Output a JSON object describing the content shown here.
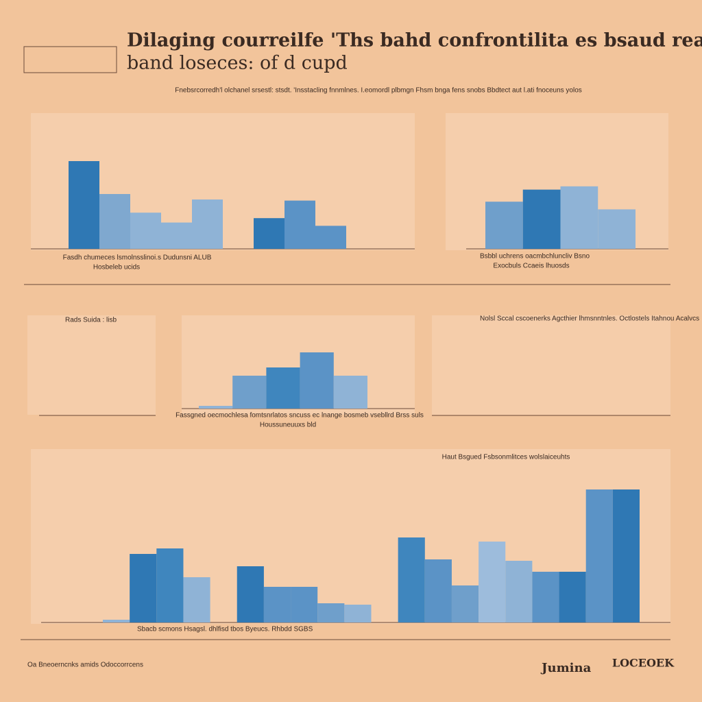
{
  "title": "Dilaging courreilfe 'Ths bahd confrontilita es bsaud reanies",
  "title_line2": "band loseces: of d cupd",
  "subtitle": "Fnebsrcorredh'l olchanel srsestl: stsdt. 'Insstacling fnnmlnes. I.eomordl plbmgn Fhsm bnga fens snobs Bbdtect aut l.ati fnoceuns yolos",
  "notes": [
    "Rads Suida : lisb",
    "Nolsl Sccal cscoenerks Agcthier lhmsnntnles. Octlostels Itahnou Acalvcs",
    "Jumina",
    "LOCEOEK",
    "Oa Bneoerncnks amids Odoccorrcens"
  ],
  "chart_data": [
    {
      "type": "bar",
      "caption": "Fasdh chumeces lsmolnsslinoi.s Dudunsni ALUB",
      "caption2": "Hosbeleb ucids",
      "categories": [
        null,
        null,
        null,
        null,
        null,
        null,
        null,
        null,
        null
      ],
      "values": [
        80,
        50,
        33,
        24,
        45,
        null,
        28,
        44,
        21
      ],
      "colors": [
        "#2f78b4",
        "#7fa8cf",
        "#8fb3d6",
        "#8fb3d6",
        "#8fb3d6",
        null,
        "#2f78b4",
        "#5b93c6",
        "#5b93c6"
      ],
      "ylim": [
        0,
        100
      ]
    },
    {
      "type": "bar",
      "caption": "Bsbbl uchrens oacmbchluncliv Bsno",
      "caption2": "Exocbuls Ccaeis lhuosds",
      "categories": [
        null,
        null,
        null,
        null
      ],
      "values": [
        43,
        54,
        57,
        36
      ],
      "colors": [
        "#6f9fcb",
        "#2f78b4",
        "#8fb3d6",
        "#8fb3d6"
      ],
      "ylim": [
        0,
        100
      ]
    },
    {
      "type": "bar",
      "caption": "Fassgned oecmochlesa fomtsnrlatos sncuss ec lnange bosmeb vsebllrd Brss suls",
      "caption2": "Houssuneuuxs bld",
      "categories": [
        null,
        null,
        null,
        null,
        null
      ],
      "values": [
        4,
        48,
        60,
        82,
        48
      ],
      "colors": [
        "#8fb3d6",
        "#6f9fcb",
        "#3f86be",
        "#5b93c6",
        "#8fb3d6"
      ],
      "ylim": [
        0,
        100
      ]
    },
    {
      "type": "bar",
      "caption": "Haut Bsgued Fsbsonmlitces wolslaiceuhts",
      "caption2": "Sbacb scmons Hsagsl. dhlfisd tbos Byeucs. Rhbdd SGBS",
      "categories": [
        null,
        null,
        null,
        null,
        null,
        null,
        null,
        null,
        null,
        null,
        null,
        null,
        null,
        null,
        null,
        null,
        null,
        null,
        null,
        null
      ],
      "values": [
        2,
        50,
        54,
        33,
        null,
        41,
        26,
        26,
        14,
        13,
        null,
        62,
        46,
        27,
        59,
        45,
        37,
        37,
        97,
        97
      ],
      "colors": [
        "#8fb3d6",
        "#2f78b4",
        "#3f86be",
        "#8fb3d6",
        null,
        "#2f78b4",
        "#5b93c6",
        "#5b93c6",
        "#6f9fcb",
        "#8fb3d6",
        null,
        "#3f86be",
        "#5b93c6",
        "#6f9fcb",
        "#9dbcdc",
        "#8fb3d6",
        "#5b93c6",
        "#2f78b4",
        "#5b93c6",
        "#2f78b4"
      ],
      "ylim": [
        0,
        100
      ]
    }
  ]
}
